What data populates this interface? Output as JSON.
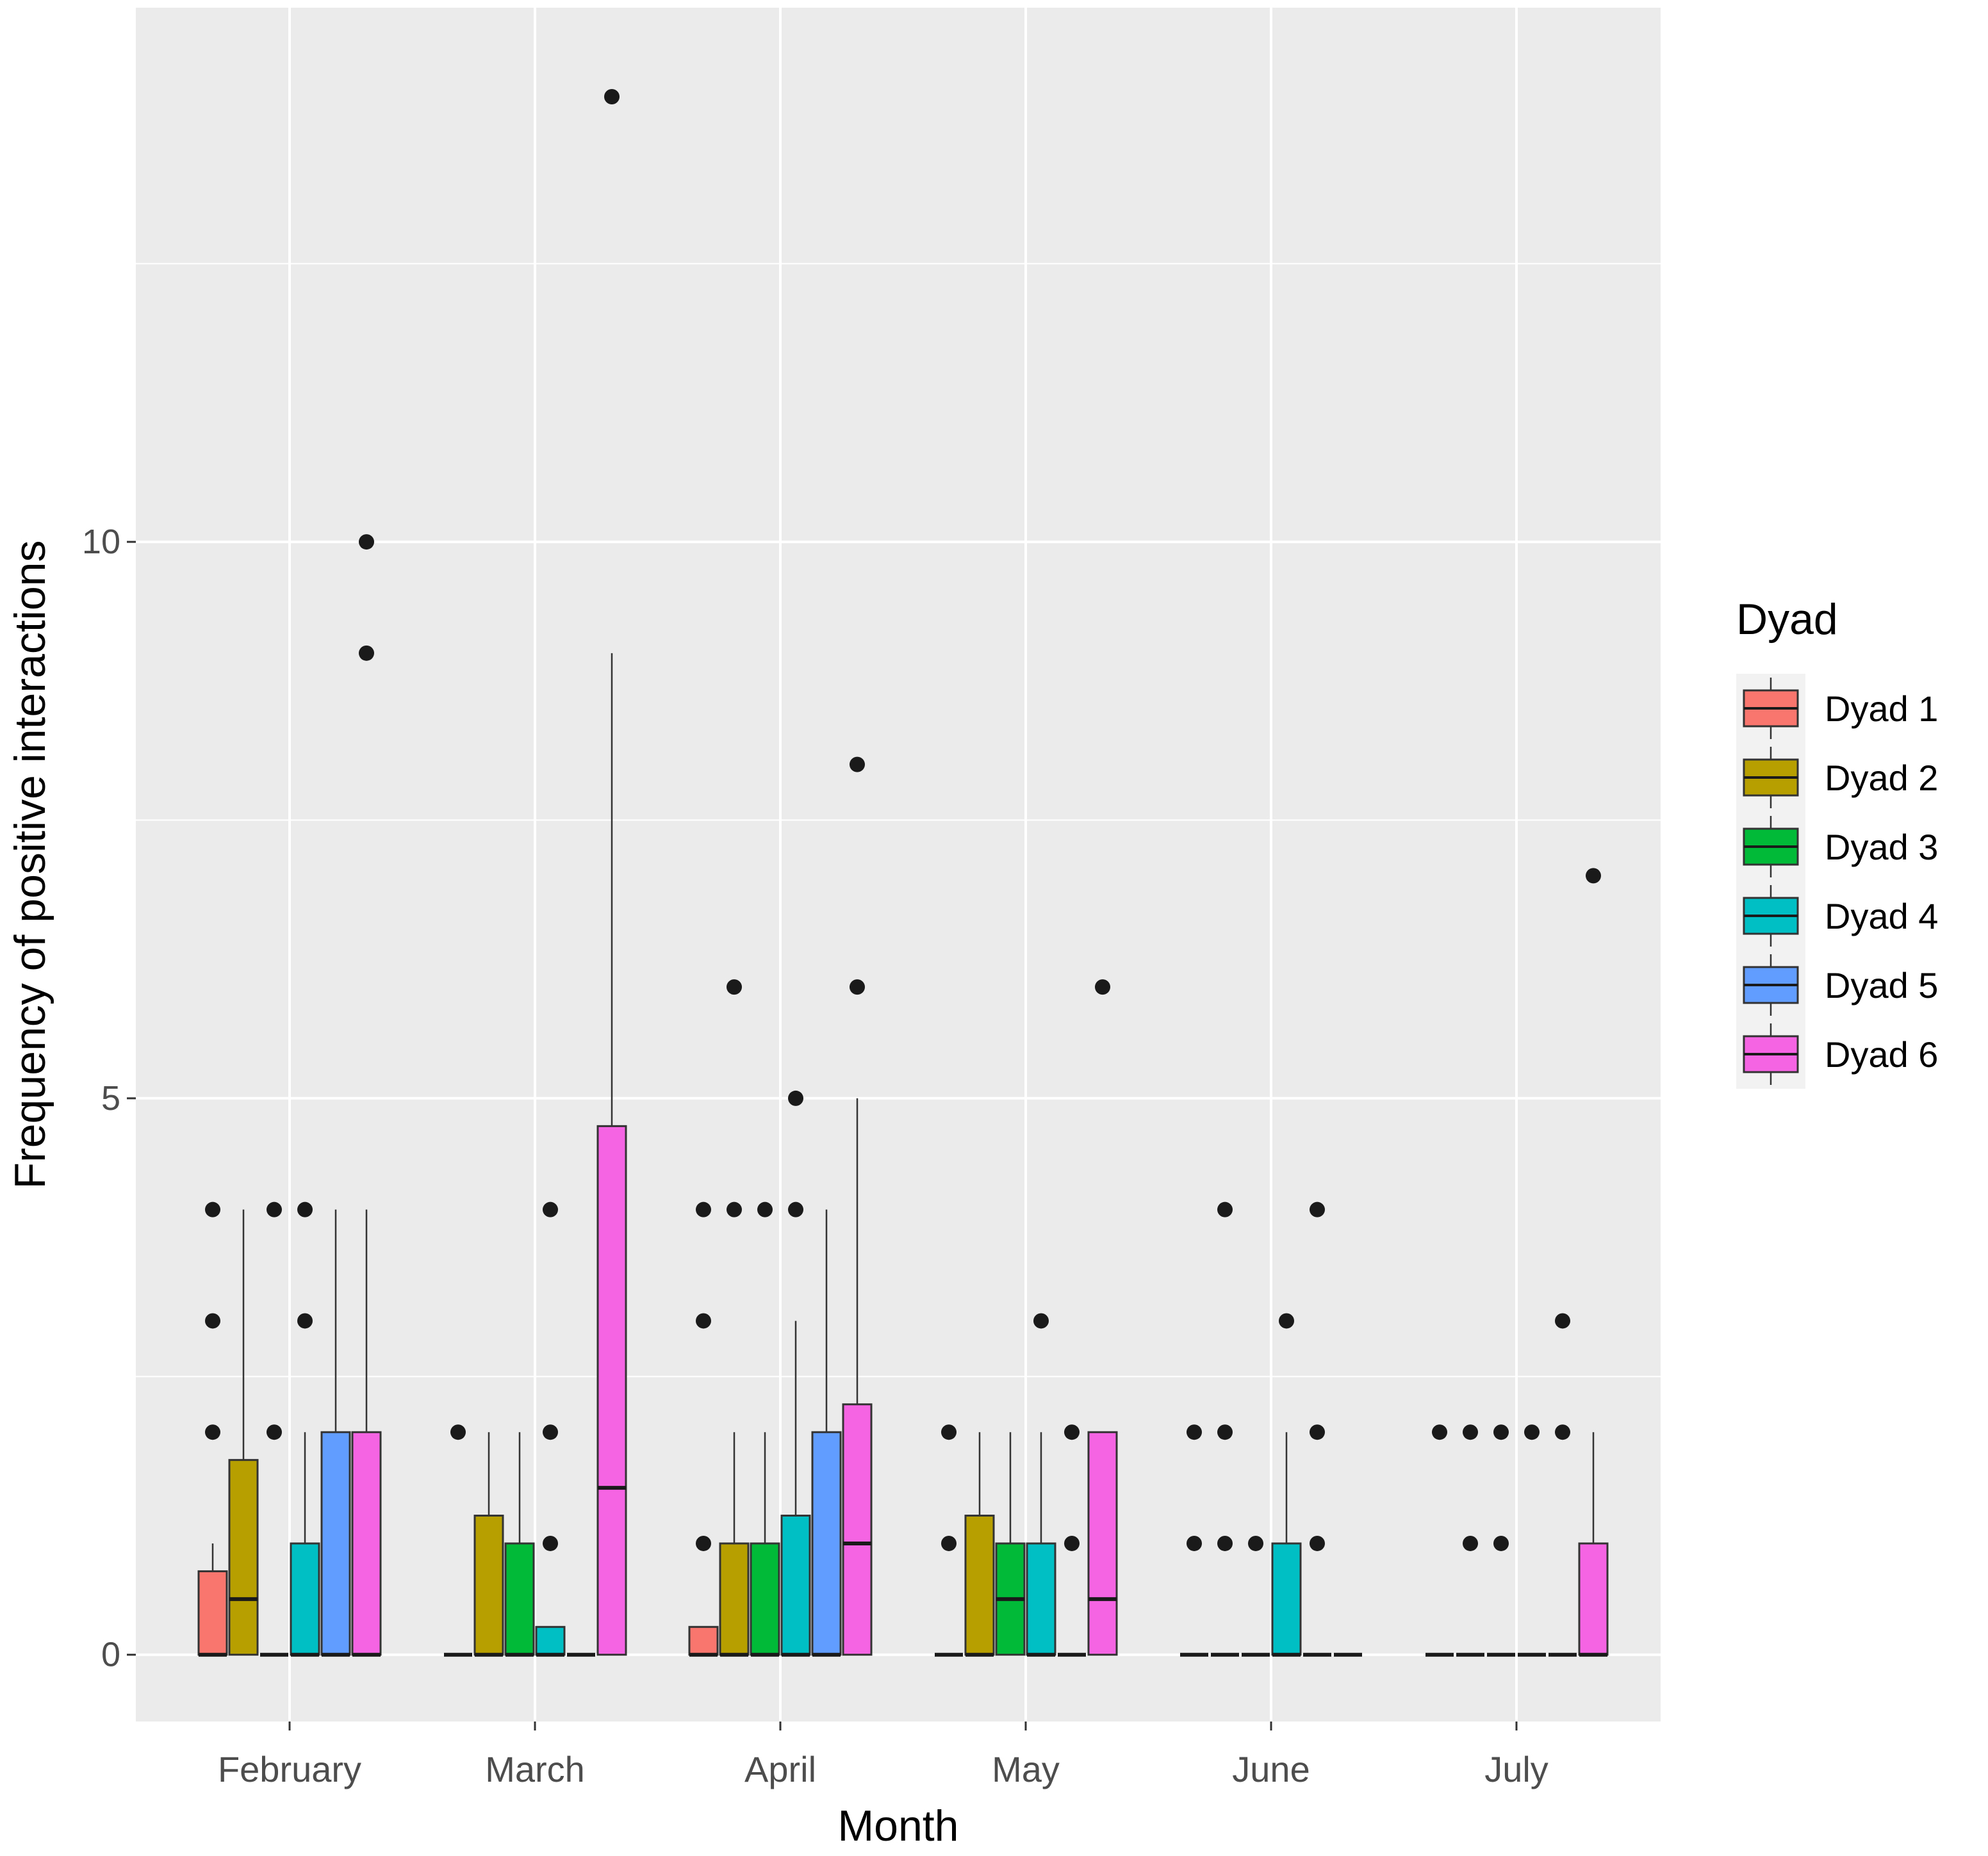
{
  "chart_data": {
    "type": "boxplot",
    "title": "",
    "xlabel": "Month",
    "ylabel": "Frequency of positive interactions",
    "categories": [
      "February",
      "March",
      "April",
      "May",
      "June",
      "July"
    ],
    "y_ticks": [
      {
        "value": 0,
        "label": "0"
      },
      {
        "value": 5,
        "label": "5"
      },
      {
        "value": 10,
        "label": "10"
      }
    ],
    "ylim": [
      -0.6,
      14.8
    ],
    "grid": true,
    "legend": {
      "title": "Dyad",
      "position": "right"
    },
    "series": [
      {
        "name": "Dyad 1",
        "color": "#F8766D",
        "boxes": [
          {
            "q1": 0,
            "median": 0,
            "q3": 0.75,
            "whisker_low": 0,
            "whisker_high": 1,
            "outliers": [
              2,
              3,
              4
            ]
          },
          {
            "q1": 0,
            "median": 0,
            "q3": 0,
            "whisker_low": 0,
            "whisker_high": 0,
            "outliers": [
              2
            ]
          },
          {
            "q1": 0,
            "median": 0,
            "q3": 0.25,
            "whisker_low": 0,
            "whisker_high": 0.25,
            "outliers": [
              1,
              3,
              4
            ]
          },
          {
            "q1": 0,
            "median": 0,
            "q3": 0,
            "whisker_low": 0,
            "whisker_high": 0,
            "outliers": [
              1,
              2
            ]
          },
          {
            "q1": 0,
            "median": 0,
            "q3": 0,
            "whisker_low": 0,
            "whisker_high": 0,
            "outliers": [
              1,
              2
            ]
          },
          {
            "q1": 0,
            "median": 0,
            "q3": 0,
            "whisker_low": 0,
            "whisker_high": 0,
            "outliers": [
              2
            ]
          }
        ]
      },
      {
        "name": "Dyad 2",
        "color": "#B79F00",
        "boxes": [
          {
            "q1": 0,
            "median": 0.5,
            "q3": 1.75,
            "whisker_low": 0,
            "whisker_high": 4,
            "outliers": []
          },
          {
            "q1": 0,
            "median": 0,
            "q3": 1.25,
            "whisker_low": 0,
            "whisker_high": 2,
            "outliers": []
          },
          {
            "q1": 0,
            "median": 0,
            "q3": 1,
            "whisker_low": 0,
            "whisker_high": 2,
            "outliers": [
              4,
              6
            ]
          },
          {
            "q1": 0,
            "median": 0,
            "q3": 1.25,
            "whisker_low": 0,
            "whisker_high": 2,
            "outliers": []
          },
          {
            "q1": 0,
            "median": 0,
            "q3": 0,
            "whisker_low": 0,
            "whisker_high": 0,
            "outliers": [
              1,
              2,
              4
            ]
          },
          {
            "q1": 0,
            "median": 0,
            "q3": 0,
            "whisker_low": 0,
            "whisker_high": 0,
            "outliers": [
              1,
              2
            ]
          }
        ]
      },
      {
        "name": "Dyad 3",
        "color": "#00BA38",
        "boxes": [
          {
            "q1": 0,
            "median": 0,
            "q3": 0,
            "whisker_low": 0,
            "whisker_high": 0,
            "outliers": [
              2,
              4
            ]
          },
          {
            "q1": 0,
            "median": 0,
            "q3": 1,
            "whisker_low": 0,
            "whisker_high": 2,
            "outliers": []
          },
          {
            "q1": 0,
            "median": 0,
            "q3": 1,
            "whisker_low": 0,
            "whisker_high": 2,
            "outliers": [
              4
            ]
          },
          {
            "q1": 0,
            "median": 0.5,
            "q3": 1,
            "whisker_low": 0,
            "whisker_high": 2,
            "outliers": []
          },
          {
            "q1": 0,
            "median": 0,
            "q3": 0,
            "whisker_low": 0,
            "whisker_high": 0,
            "outliers": [
              1
            ]
          },
          {
            "q1": 0,
            "median": 0,
            "q3": 0,
            "whisker_low": 0,
            "whisker_high": 0,
            "outliers": [
              1,
              2
            ]
          }
        ]
      },
      {
        "name": "Dyad 4",
        "color": "#00BFC4",
        "boxes": [
          {
            "q1": 0,
            "median": 0,
            "q3": 1,
            "whisker_low": 0,
            "whisker_high": 2,
            "outliers": [
              3,
              4
            ]
          },
          {
            "q1": 0,
            "median": 0,
            "q3": 0.25,
            "whisker_low": 0,
            "whisker_high": 0.25,
            "outliers": [
              1,
              2,
              4
            ]
          },
          {
            "q1": 0,
            "median": 0,
            "q3": 1.25,
            "whisker_low": 0,
            "whisker_high": 3,
            "outliers": [
              4,
              5
            ]
          },
          {
            "q1": 0,
            "median": 0,
            "q3": 1,
            "whisker_low": 0,
            "whisker_high": 2,
            "outliers": [
              3
            ]
          },
          {
            "q1": 0,
            "median": 0,
            "q3": 1,
            "whisker_low": 0,
            "whisker_high": 2,
            "outliers": [
              3
            ]
          },
          {
            "q1": 0,
            "median": 0,
            "q3": 0,
            "whisker_low": 0,
            "whisker_high": 0,
            "outliers": [
              2
            ]
          }
        ]
      },
      {
        "name": "Dyad 5",
        "color": "#619CFF",
        "boxes": [
          {
            "q1": 0,
            "median": 0,
            "q3": 2,
            "whisker_low": 0,
            "whisker_high": 4,
            "outliers": []
          },
          {
            "q1": 0,
            "median": 0,
            "q3": 0,
            "whisker_low": 0,
            "whisker_high": 0,
            "outliers": []
          },
          {
            "q1": 0,
            "median": 0,
            "q3": 2,
            "whisker_low": 0,
            "whisker_high": 4,
            "outliers": []
          },
          {
            "q1": 0,
            "median": 0,
            "q3": 0,
            "whisker_low": 0,
            "whisker_high": 0,
            "outliers": [
              1,
              2
            ]
          },
          {
            "q1": 0,
            "median": 0,
            "q3": 0,
            "whisker_low": 0,
            "whisker_high": 0,
            "outliers": [
              1,
              2,
              4
            ]
          },
          {
            "q1": 0,
            "median": 0,
            "q3": 0,
            "whisker_low": 0,
            "whisker_high": 0,
            "outliers": [
              2,
              3
            ]
          }
        ]
      },
      {
        "name": "Dyad 6",
        "color": "#F564E3",
        "boxes": [
          {
            "q1": 0,
            "median": 0,
            "q3": 2,
            "whisker_low": 0,
            "whisker_high": 4,
            "outliers": [
              9,
              10
            ]
          },
          {
            "q1": 0,
            "median": 1.5,
            "q3": 4.75,
            "whisker_low": 0,
            "whisker_high": 9,
            "outliers": [
              14
            ]
          },
          {
            "q1": 0,
            "median": 1,
            "q3": 2.25,
            "whisker_low": 0,
            "whisker_high": 5,
            "outliers": [
              6,
              8
            ]
          },
          {
            "q1": 0,
            "median": 0.5,
            "q3": 2,
            "whisker_low": 0,
            "whisker_high": 2,
            "outliers": [
              6
            ]
          },
          {
            "q1": 0,
            "median": 0,
            "q3": 0,
            "whisker_low": 0,
            "whisker_high": 0,
            "outliers": []
          },
          {
            "q1": 0,
            "median": 0,
            "q3": 1,
            "whisker_low": 0,
            "whisker_high": 2,
            "outliers": [
              7
            ]
          }
        ]
      }
    ]
  }
}
